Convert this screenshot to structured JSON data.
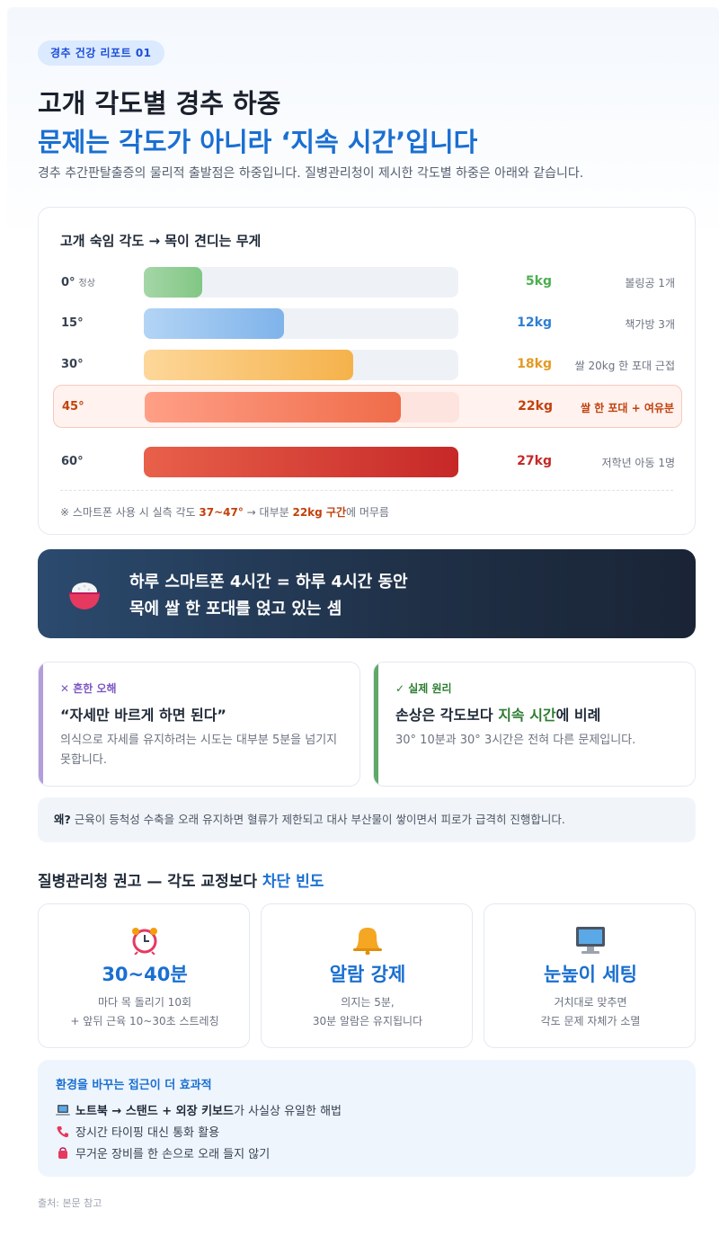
{
  "header": {
    "badge": "경추 건강 리포트 01",
    "title_line1": "고개 각도별 경추 하중",
    "title_line2": "문제는 각도가 아니라 ‘지속 시간’입니다",
    "intro": "경추 추간판탈출증의 물리적 출발점은 하중입니다. 질병관리청이 제시한 각도별 하중은 아래와 같습니다."
  },
  "load_card": {
    "title": "고개 숙임 각도 → 목이 견디는 무게",
    "rows": [
      {
        "angle": "0°",
        "tag": "정상",
        "kg": "5kg",
        "value": 5,
        "compare": "볼링공 1개",
        "color": "#4caf50"
      },
      {
        "angle": "15°",
        "tag": "",
        "kg": "12kg",
        "value": 12,
        "compare": "책가방 3개",
        "color": "#2f7fd1"
      },
      {
        "angle": "30°",
        "tag": "",
        "kg": "18kg",
        "value": 18,
        "compare": "쌀 20kg 한 포대 근접",
        "color": "#e39a22"
      },
      {
        "angle": "45°",
        "tag": "",
        "kg": "22kg",
        "value": 22,
        "compare": "쌀 한 포대 + 여유분",
        "color": "#c2410c"
      },
      {
        "angle": "60°",
        "tag": "",
        "kg": "27kg",
        "value": 27,
        "compare": "저학년 아동 1명",
        "color": "#c62828"
      }
    ],
    "max_value": 27,
    "note_prefix": "※ 스마트폰 사용 시 실측 각도 ",
    "note_range": "37~47°",
    "note_mid": " → 대부분 ",
    "note_kg": "22kg 구간",
    "note_suffix": "에 머무름"
  },
  "banner": {
    "line1": "하루 스마트폰 4시간 = 하루 4시간 동안",
    "line2": "목에 쌀 한 포대를 얹고 있는 셈",
    "icon": "rice-bowl-icon"
  },
  "myth": {
    "label": "✕ 흔한 오해",
    "head": "“자세만 바르게 하면 된다”",
    "body": "의식으로 자세를 유지하려는 시도는 대부분 5분을 넘기지 못합니다.",
    "color": "#b39ddb"
  },
  "truth": {
    "label": "✓ 실제 원리",
    "head_pre": "손상은 각도보다 ",
    "head_em": "지속 시간",
    "head_post": "에 비례",
    "body": "30° 10분과 30° 3시간은 전혀 다른 문제입니다.",
    "color": "#5fa86a"
  },
  "why": {
    "label": "왜?",
    "text": " 근육이 등척성 수축을 오래 유지하면 혈류가 제한되고 대사 부산물이 쌓이면서 피로가 급격히 진행합니다."
  },
  "recommend": {
    "title_pre": "질병관리청 권고 — 각도 교정보다 ",
    "title_em": "차단 빈도",
    "tiles": [
      {
        "icon": "alarm-clock-icon",
        "big": "30~40분",
        "sub1": "마다 목 돌리기 10회",
        "sub2": "+ 앞뒤 근육 10~30초 스트레칭"
      },
      {
        "icon": "bell-icon",
        "big": "알람 강제",
        "sub1": "의지는 5분,",
        "sub2": "30분 알람은 유지됩니다"
      },
      {
        "icon": "monitor-icon",
        "big": "눈높이 세팅",
        "sub1": "거치대로 맞추면",
        "sub2": "각도 문제 자체가 소멸"
      }
    ]
  },
  "environment": {
    "title": "환경을 바꾸는 접근이 더 효과적",
    "items": [
      {
        "icon": "laptop-icon",
        "bold1": "노트북 → 스탠드 + 외장 키보드",
        "text": "가 사실상 유일한 해법"
      },
      {
        "icon": "phone-icon",
        "bold1": "",
        "text": "장시간 타이핑 대신 통화 활용"
      },
      {
        "icon": "bag-icon",
        "bold1": "",
        "text": "무거운 장비를 한 손으로 오래 들지 않기"
      }
    ]
  },
  "source": "출처: 본문 참고"
}
